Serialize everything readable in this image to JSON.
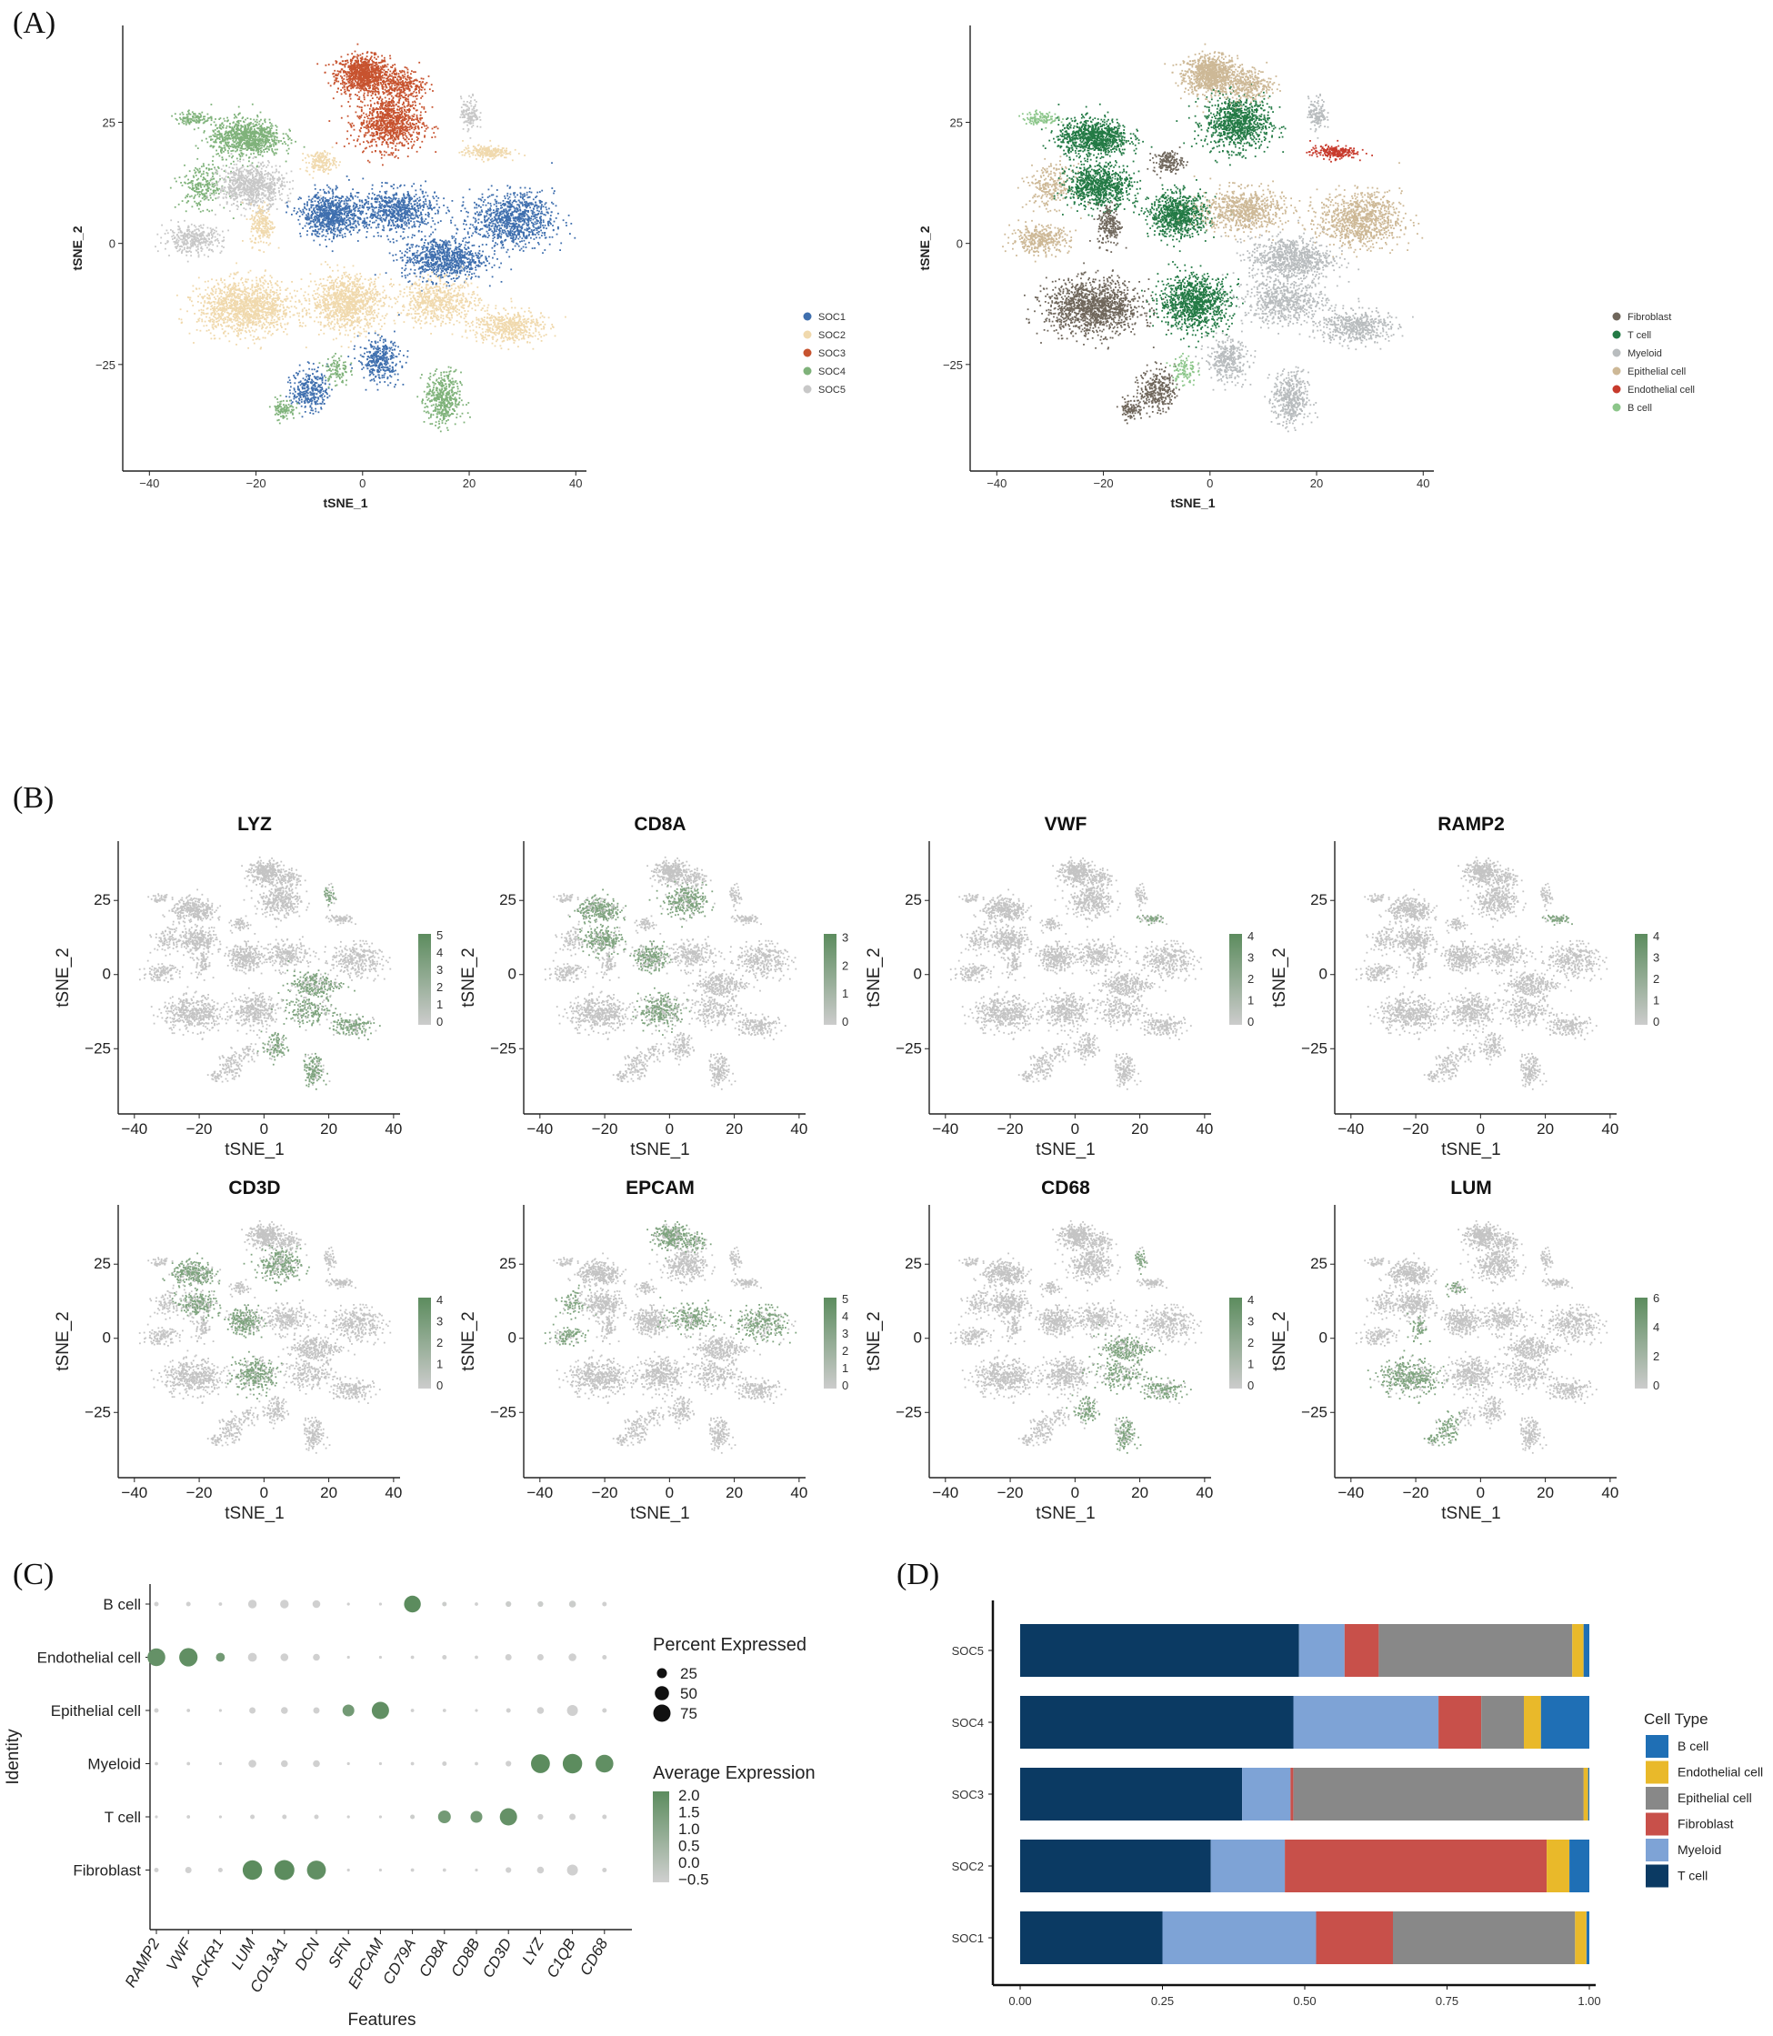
{
  "panel_labels": [
    "(A)",
    "(B)",
    "(C)",
    "(D)"
  ],
  "colors": {
    "SOC1": "#3f6fae",
    "SOC2": "#f0d9ad",
    "SOC3": "#c7532f",
    "SOC4": "#7fb27a",
    "SOC5": "#c8c8c8",
    "Fibroblast": "#6f665b",
    "T cell": "#237a45",
    "Myeloid": "#b8bcbe",
    "Epithelial cell": "#cdb896",
    "Endothelial cell": "#c73a2c",
    "B cell": "#8cc68a",
    "feat_low": "#cccccc",
    "feat_high": "#5c8c5e"
  },
  "chart_data": [
    {
      "type": "scatter",
      "panel": "(A) left",
      "xlabel": "tSNE_1",
      "ylabel": "tSNE_2",
      "xlim": [
        -45,
        42
      ],
      "ylim": [
        -47,
        45
      ],
      "xticks": [
        -40,
        -20,
        0,
        20,
        40
      ],
      "yticks": [
        -25,
        0,
        25
      ],
      "legend": [
        "SOC1",
        "SOC2",
        "SOC3",
        "SOC4",
        "SOC5"
      ],
      "legend_position": "right"
    },
    {
      "type": "scatter",
      "panel": "(A) right",
      "xlabel": "tSNE_1",
      "ylabel": "tSNE_2",
      "xlim": [
        -45,
        42
      ],
      "ylim": [
        -47,
        45
      ],
      "xticks": [
        -40,
        -20,
        0,
        20,
        40
      ],
      "yticks": [
        -25,
        0,
        25
      ],
      "legend": [
        "Fibroblast",
        "T cell",
        "Myeloid",
        "Epithelial cell",
        "Endothelial cell",
        "B cell"
      ],
      "legend_position": "right"
    },
    {
      "type": "scatter",
      "panel": "(B)",
      "xlabel": "tSNE_1",
      "ylabel": "tSNE_2",
      "xticks": [
        -40,
        -20,
        0,
        20,
        40
      ],
      "yticks": [
        -25,
        0,
        25
      ],
      "features": [
        {
          "gene": "LYZ",
          "scale": [
            "0",
            "1",
            "2",
            "3",
            "4",
            "5"
          ]
        },
        {
          "gene": "CD8A",
          "scale": [
            "0",
            "1",
            "2",
            "3"
          ]
        },
        {
          "gene": "VWF",
          "scale": [
            "0",
            "1",
            "2",
            "3",
            "4"
          ]
        },
        {
          "gene": "RAMP2",
          "scale": [
            "0",
            "1",
            "2",
            "3",
            "4"
          ]
        },
        {
          "gene": "CD3D",
          "scale": [
            "0",
            "1",
            "2",
            "3",
            "4"
          ]
        },
        {
          "gene": "EPCAM",
          "scale": [
            "0",
            "1",
            "2",
            "3",
            "4",
            "5"
          ]
        },
        {
          "gene": "CD68",
          "scale": [
            "0",
            "1",
            "2",
            "3",
            "4"
          ]
        },
        {
          "gene": "LUM",
          "scale": [
            "0",
            "2",
            "4",
            "6"
          ]
        }
      ]
    },
    {
      "type": "scatter",
      "panel": "(C)",
      "xlabel": "Features",
      "ylabel": "Identity",
      "features": [
        "RAMP2",
        "VWF",
        "ACKR1",
        "LUM",
        "COL3A1",
        "DCN",
        "SFN",
        "EPCAM",
        "CD79A",
        "CD8A",
        "CD8B",
        "CD3D",
        "LYZ",
        "C1QB",
        "CD68"
      ],
      "identities": [
        "B cell",
        "Endothelial cell",
        "Epithelial cell",
        "Myeloid",
        "T cell",
        "Fibroblast"
      ],
      "size_legend_title": "Percent Expressed",
      "size_legend": [
        25,
        50,
        75
      ],
      "color_legend_title": "Average Expression",
      "color_legend_labels": [
        "2.0",
        "1.5",
        "1.0",
        "0.5",
        "0.0",
        "−0.5"
      ],
      "points": [
        {
          "identity": "B cell",
          "pct": [
            5,
            5,
            3,
            18,
            18,
            15,
            2,
            2,
            70,
            5,
            3,
            8,
            8,
            12,
            5
          ],
          "avg": [
            -0.5,
            -0.5,
            -0.5,
            -0.5,
            -0.5,
            -0.5,
            -0.5,
            -0.5,
            2.0,
            -0.4,
            -0.5,
            -0.4,
            -0.4,
            -0.4,
            -0.5
          ]
        },
        {
          "identity": "Endothelial cell",
          "pct": [
            80,
            85,
            20,
            20,
            15,
            12,
            2,
            2,
            3,
            5,
            3,
            10,
            10,
            15,
            5
          ],
          "avg": [
            1.8,
            1.9,
            1.5,
            -0.5,
            -0.5,
            -0.5,
            -0.5,
            -0.5,
            -0.5,
            -0.5,
            -0.5,
            -0.5,
            -0.5,
            -0.5,
            -0.5
          ]
        },
        {
          "identity": "Epithelial cell",
          "pct": [
            5,
            3,
            2,
            10,
            12,
            10,
            35,
            75,
            3,
            3,
            2,
            5,
            12,
            30,
            5
          ],
          "avg": [
            -0.5,
            -0.5,
            -0.5,
            -0.5,
            -0.5,
            -0.5,
            1.5,
            1.9,
            -0.5,
            -0.5,
            -0.5,
            -0.5,
            -0.5,
            -0.5,
            -0.5
          ]
        },
        {
          "identity": "Myeloid",
          "pct": [
            3,
            3,
            2,
            15,
            12,
            12,
            2,
            2,
            3,
            5,
            3,
            8,
            90,
            95,
            80
          ],
          "avg": [
            -0.5,
            -0.5,
            -0.5,
            -0.5,
            -0.5,
            -0.5,
            -0.5,
            -0.5,
            -0.5,
            -0.5,
            -0.5,
            -0.5,
            2.0,
            2.0,
            1.9
          ]
        },
        {
          "identity": "T cell",
          "pct": [
            2,
            3,
            2,
            5,
            5,
            5,
            2,
            2,
            5,
            40,
            35,
            75,
            8,
            10,
            5
          ],
          "avg": [
            -0.5,
            -0.5,
            -0.5,
            -0.5,
            -0.5,
            -0.5,
            -0.5,
            -0.5,
            -0.4,
            1.5,
            1.5,
            1.8,
            -0.5,
            -0.5,
            -0.5
          ]
        },
        {
          "identity": "Fibroblast",
          "pct": [
            5,
            10,
            5,
            95,
            100,
            90,
            2,
            2,
            3,
            3,
            2,
            8,
            12,
            30,
            5
          ],
          "avg": [
            -0.5,
            -0.5,
            -0.5,
            2.0,
            2.0,
            1.9,
            -0.5,
            -0.5,
            -0.5,
            -0.5,
            -0.5,
            -0.5,
            -0.5,
            -0.5,
            -0.5
          ]
        }
      ]
    },
    {
      "type": "bar",
      "panel": "(D)",
      "orientation": "horizontal-stacked",
      "categories": [
        "SOC5",
        "SOC4",
        "SOC3",
        "SOC2",
        "SOC1"
      ],
      "xlim": [
        0,
        1
      ],
      "xticks": [
        "0.00",
        "0.25",
        "0.50",
        "0.75",
        "1.00"
      ],
      "legend_title": "Cell Type",
      "legend": [
        "B cell",
        "Endothelial cell",
        "Epithelial cell",
        "Fibroblast",
        "Myeloid",
        "T cell"
      ],
      "series": [
        {
          "name": "T cell",
          "color": "#0b3a63",
          "values": [
            0.49,
            0.48,
            0.39,
            0.335,
            0.25
          ]
        },
        {
          "name": "Myeloid",
          "color": "#7ea3d6",
          "values": [
            0.08,
            0.255,
            0.085,
            0.13,
            0.27
          ]
        },
        {
          "name": "Fibroblast",
          "color": "#c8504a",
          "values": [
            0.06,
            0.075,
            0.005,
            0.46,
            0.135
          ]
        },
        {
          "name": "Epithelial cell",
          "color": "#888888",
          "values": [
            0.34,
            0.075,
            0.51,
            0.0,
            0.32
          ]
        },
        {
          "name": "Endothelial cell",
          "color": "#e9b92a",
          "values": [
            0.02,
            0.03,
            0.008,
            0.04,
            0.02
          ]
        },
        {
          "name": "B cell",
          "color": "#1f6fb5",
          "values": [
            0.01,
            0.085,
            0.002,
            0.035,
            0.005
          ]
        }
      ]
    }
  ]
}
